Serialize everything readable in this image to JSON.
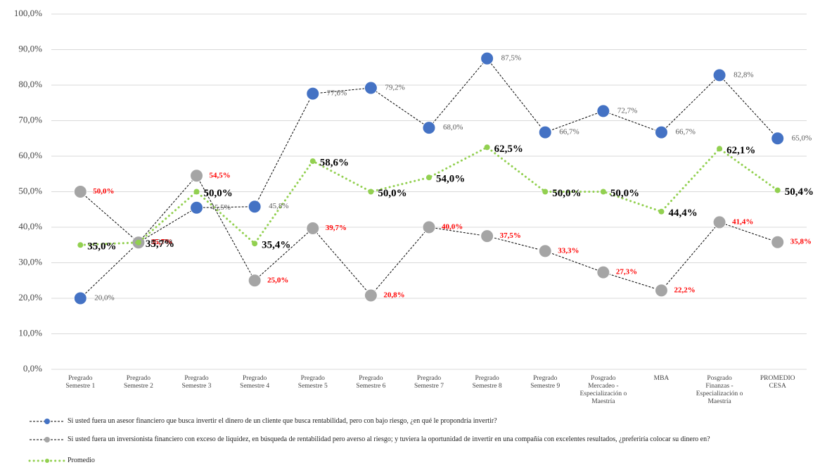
{
  "chart_data": {
    "type": "line",
    "categories": [
      [
        "Pregrado",
        "Semestre 1"
      ],
      [
        "Pregrado",
        "Semestre 2"
      ],
      [
        "Pregrado",
        "Semestre 3"
      ],
      [
        "Pregrado",
        "Semestre 4"
      ],
      [
        "Pregrado",
        "Semestre 5"
      ],
      [
        "Pregrado",
        "Semestre 6"
      ],
      [
        "Pregrado",
        "Semestre 7"
      ],
      [
        "Pregrado",
        "Semestre 8"
      ],
      [
        "Pregrado",
        "Semestre 9"
      ],
      [
        "Posgrado",
        "Mercadeo -",
        "Especialización o",
        "Maestría"
      ],
      [
        "MBA"
      ],
      [
        "Posgrado",
        "Finanzas -",
        "Especialización o",
        "Maestría"
      ],
      [
        "PROMEDIO",
        "CESA"
      ]
    ],
    "series": [
      {
        "name": "Si usted fuera un asesor financiero que busca invertir el dinero de un cliente que busca rentabilidad, pero con bajo riesgo, ¿en qué le propondría invertir?",
        "color": "#4472c4",
        "values": [
          20.0,
          35.7,
          45.5,
          45.8,
          77.6,
          79.2,
          68.0,
          87.5,
          66.7,
          72.7,
          66.7,
          82.8,
          65.0
        ],
        "value_labels": [
          "20,0%",
          "35,7%",
          "45,5%",
          "45,8%",
          "77,6%",
          "79,2%",
          "68,0%",
          "87,5%",
          "66,7%",
          "72,7%",
          "66,7%",
          "82,8%",
          "65,0%"
        ]
      },
      {
        "name": "Si usted fuera un inversionista financiero con exceso de liquidez, en búsqueda de rentabilidad pero averso al riesgo; y tuviera la oportunidad de invertir en una compañía con excelentes resultados, ¿preferiría colocar su dinero en?",
        "color": "#a5a5a5",
        "values": [
          50.0,
          35.7,
          54.5,
          25.0,
          39.7,
          20.8,
          40.0,
          37.5,
          33.3,
          27.3,
          22.2,
          41.4,
          35.8
        ],
        "value_labels": [
          "50,0%",
          "35,7%",
          "54,5%",
          "25,0%",
          "39,7%",
          "20,8%",
          "40,0%",
          "37,5%",
          "33,3%",
          "27,3%",
          "22,2%",
          "41,4%",
          "35,8%"
        ]
      },
      {
        "name": "Promedio",
        "color": "#92d050",
        "values": [
          35.0,
          35.7,
          50.0,
          35.4,
          58.6,
          50.0,
          54.0,
          62.5,
          50.0,
          50.0,
          44.4,
          62.1,
          50.4
        ],
        "value_labels": [
          "35,0%",
          "35,7%",
          "50,0%",
          "35,4%",
          "58,6%",
          "50,0%",
          "54,0%",
          "62,5%",
          "50,0%",
          "50,0%",
          "44,4%",
          "62,1%",
          "50,4%"
        ]
      }
    ],
    "ylim": [
      0,
      100
    ],
    "yticks": [
      {
        "value": 0,
        "label": "0,0%"
      },
      {
        "value": 10,
        "label": "10,0%"
      },
      {
        "value": 20,
        "label": "20,0%"
      },
      {
        "value": 30,
        "label": "30,0%"
      },
      {
        "value": 40,
        "label": "40,0%"
      },
      {
        "value": 50,
        "label": "50,0%"
      },
      {
        "value": 60,
        "label": "60,0%"
      },
      {
        "value": 70,
        "label": "70,0%"
      },
      {
        "value": 80,
        "label": "80,0%"
      },
      {
        "value": 90,
        "label": "90,0%"
      },
      {
        "value": 100,
        "label": "100,0%"
      }
    ],
    "grid": true
  }
}
